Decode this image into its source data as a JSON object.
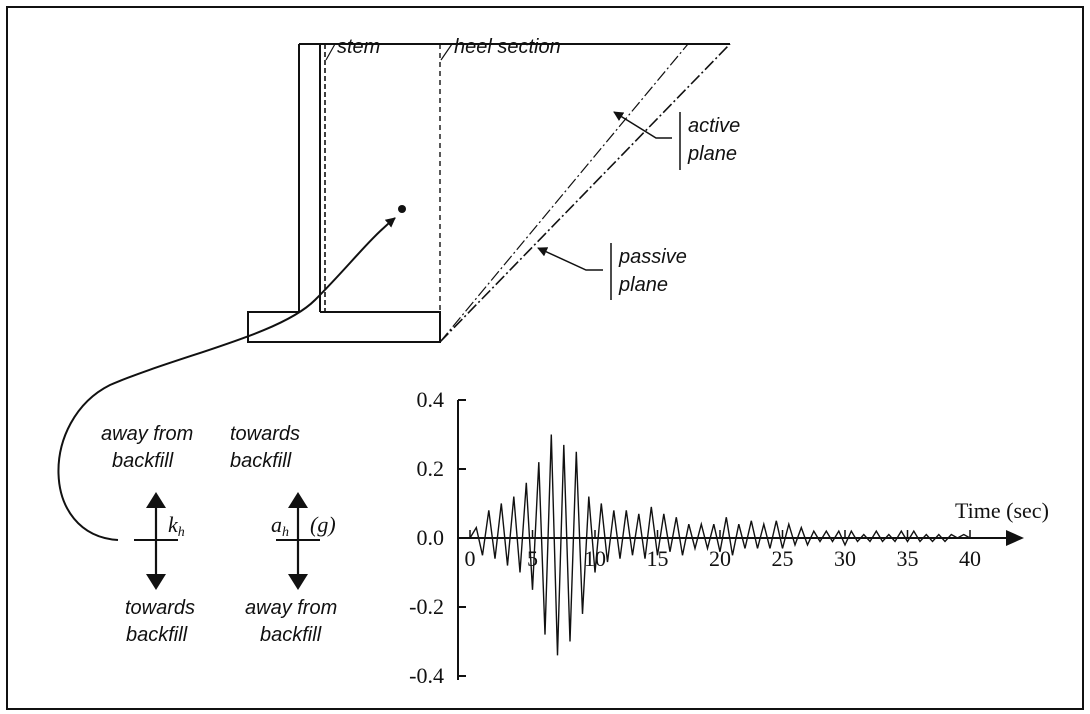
{
  "labels": {
    "stem": "stem",
    "heel_section": "heel section",
    "active_1": "active",
    "active_2": "plane",
    "passive_1": "passive",
    "passive_2": "plane",
    "away_top_1": "away from",
    "away_top_2": "backfill",
    "towards_top_1": "towards",
    "towards_top_2": "backfill",
    "towards_bot_1": "towards",
    "towards_bot_2": "backfill",
    "away_bot_1": "away from",
    "away_bot_2": "backfill",
    "kh_symbol": "k",
    "kh_sub": "h",
    "ah_symbol": "a",
    "ah_sub": "h",
    "ah_unit": "(g)"
  },
  "chart_data": {
    "type": "line",
    "xlabel": "Time (sec)",
    "ylabel": "",
    "xlim": [
      0,
      45
    ],
    "ylim": [
      -0.4,
      0.4
    ],
    "x_ticks": [
      "0",
      "5",
      "10",
      "15",
      "20",
      "25",
      "30",
      "35",
      "40"
    ],
    "y_ticks": [
      "0.4",
      "0.2",
      "0.0",
      "-0.2",
      "-0.4"
    ],
    "y_tick_values": [
      0.4,
      0.2,
      0.0,
      -0.2,
      -0.4
    ],
    "x_tick_values": [
      0,
      5,
      10,
      15,
      20,
      25,
      30,
      35,
      40
    ],
    "series": [
      {
        "x": [
          0,
          0.5,
          1,
          1.5,
          2,
          2.5,
          3,
          3.5,
          4,
          4.5,
          5,
          5.5,
          6,
          6.5,
          7,
          7.5,
          8,
          8.5,
          9,
          9.5,
          10,
          10.5,
          11,
          11.5,
          12,
          12.5,
          13,
          13.5,
          14,
          14.5,
          15,
          15.5,
          16,
          16.5,
          17,
          17.5,
          18,
          18.5,
          19,
          19.5,
          20,
          20.5,
          21,
          21.5,
          22,
          22.5,
          23,
          23.5,
          24,
          24.5,
          25,
          25.5,
          26,
          26.5,
          27,
          27.5,
          28,
          28.5,
          29,
          29.5,
          30,
          30.5,
          31,
          31.5,
          32,
          32.5,
          33,
          33.5,
          34,
          34.5,
          35,
          35.5,
          36,
          36.5,
          37,
          37.5,
          38,
          38.5,
          39,
          39.5,
          40
        ],
        "values": [
          0,
          0.03,
          -0.05,
          0.08,
          -0.06,
          0.1,
          -0.08,
          0.12,
          -0.1,
          0.16,
          -0.15,
          0.22,
          -0.28,
          0.3,
          -0.34,
          0.27,
          -0.3,
          0.25,
          -0.22,
          0.12,
          -0.1,
          0.1,
          -0.07,
          0.08,
          -0.06,
          0.08,
          -0.05,
          0.07,
          -0.06,
          0.09,
          -0.05,
          0.07,
          -0.04,
          0.06,
          -0.05,
          0.04,
          -0.03,
          0.04,
          -0.03,
          0.04,
          -0.04,
          0.06,
          -0.05,
          0.04,
          -0.03,
          0.05,
          -0.03,
          0.04,
          -0.03,
          0.05,
          -0.03,
          0.04,
          -0.02,
          0.03,
          -0.02,
          0.02,
          -0.01,
          0.02,
          -0.01,
          0.02,
          -0.02,
          0.02,
          -0.01,
          0.01,
          -0.01,
          0.02,
          -0.01,
          0.01,
          -0.01,
          0.02,
          -0.01,
          0.02,
          -0.01,
          0.01,
          -0.01,
          0.01,
          -0.01,
          0.01,
          0,
          0.01,
          0
        ]
      }
    ]
  }
}
